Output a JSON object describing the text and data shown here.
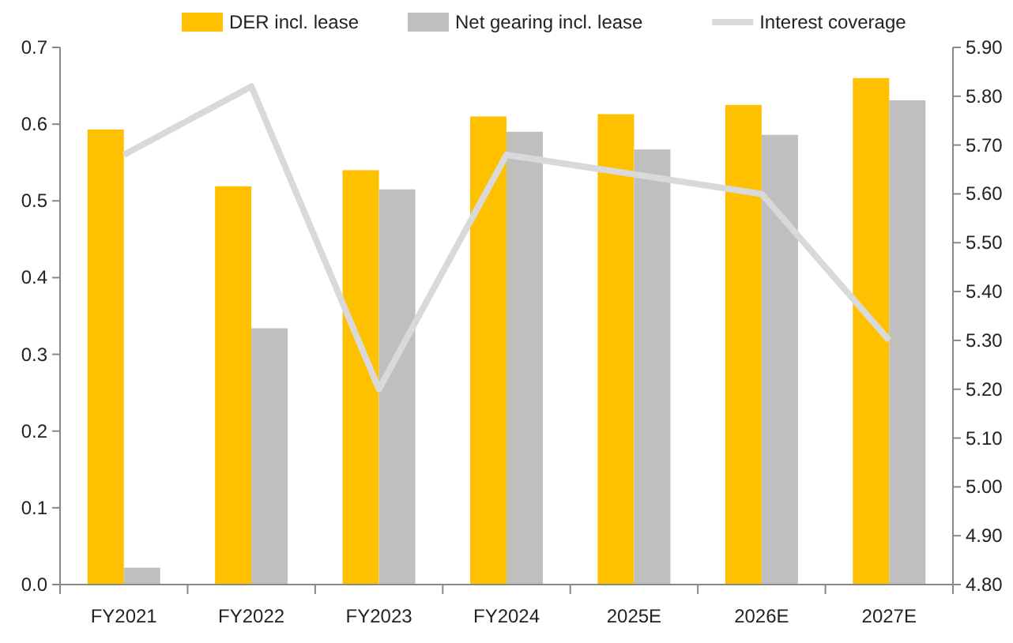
{
  "chart_data": {
    "type": "bar",
    "categories": [
      "FY2021",
      "FY2022",
      "FY2023",
      "FY2024",
      "2025E",
      "2026E",
      "2027E"
    ],
    "series": [
      {
        "name": "DER incl. lease",
        "color": "#ffc000",
        "values": [
          0.593,
          0.519,
          0.54,
          0.61,
          0.613,
          0.625,
          0.66
        ]
      },
      {
        "name": "Net gearing incl. lease",
        "color": "#bfbfbf",
        "values": [
          0.022,
          0.334,
          0.515,
          0.59,
          0.567,
          0.586,
          0.631
        ]
      },
      {
        "name": "Interest coverage",
        "type": "line",
        "axis": "y2",
        "color": "#d9d9d9",
        "values": [
          5.68,
          5.82,
          5.2,
          5.68,
          5.64,
          5.6,
          5.3
        ]
      }
    ],
    "ylim": [
      0,
      0.7
    ],
    "yticks": [
      {
        "value": 0,
        "label": "0.0"
      },
      0.1,
      0.2,
      0.3,
      0.4,
      0.5,
      0.6,
      0.7
    ],
    "y2lim": [
      4.8,
      5.9
    ],
    "y2ticks": [
      {
        "value": 4.8,
        "label": "4.80"
      },
      {
        "value": 4.9,
        "label": "4.90"
      },
      {
        "value": 5.0,
        "label": "5.00"
      },
      {
        "value": 5.1,
        "label": "5.10"
      },
      {
        "value": 5.2,
        "label": "5.20"
      },
      {
        "value": 5.3,
        "label": "5.30"
      },
      {
        "value": 5.4,
        "label": "5.40"
      },
      {
        "value": 5.5,
        "label": "5.50"
      },
      {
        "value": 5.6,
        "label": "5.60"
      },
      {
        "value": 5.7,
        "label": "5.70"
      },
      {
        "value": 5.8,
        "label": "5.80"
      },
      {
        "value": 5.9,
        "label": "5.90"
      }
    ],
    "grid": false,
    "legend": "top"
  }
}
